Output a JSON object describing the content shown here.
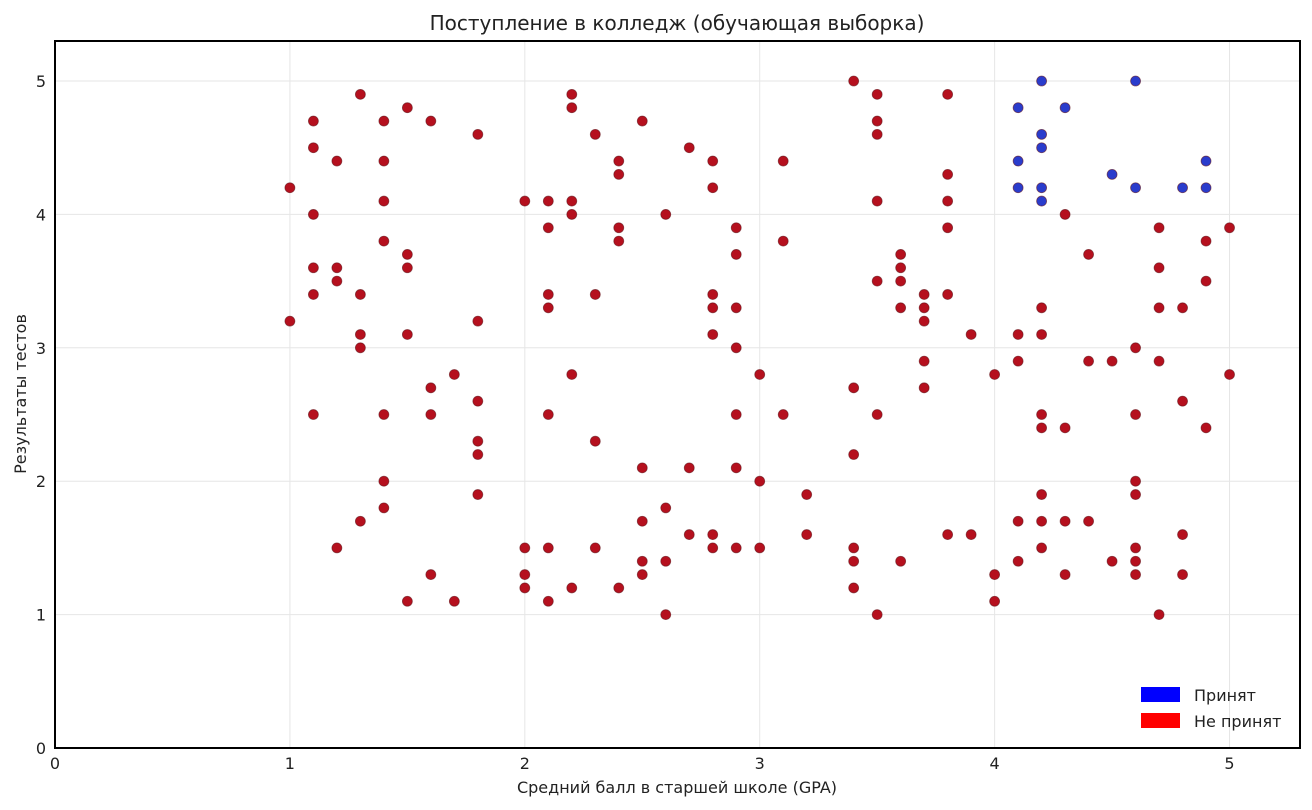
{
  "chart_data": {
    "type": "scatter",
    "title": "Поступление в колледж (обучающая выборка)",
    "xlabel": "Средний балл в старшей школе (GPA)",
    "ylabel": "Результаты тестов",
    "xlim": [
      0,
      5.3
    ],
    "ylim": [
      0,
      5.3
    ],
    "xticks": [
      0,
      1,
      2,
      3,
      4,
      5
    ],
    "yticks": [
      0,
      1,
      2,
      3,
      4,
      5
    ],
    "grid": true,
    "legend_position": "bottom-right",
    "series": [
      {
        "name": "Принят",
        "color": "#2a3ccc",
        "legend_color": "#0000ff",
        "points": [
          [
            4.2,
            5.0
          ],
          [
            4.6,
            5.0
          ],
          [
            4.1,
            4.8
          ],
          [
            4.3,
            4.8
          ],
          [
            4.2,
            4.6
          ],
          [
            4.2,
            4.5
          ],
          [
            4.1,
            4.4
          ],
          [
            4.9,
            4.4
          ],
          [
            4.5,
            4.3
          ],
          [
            4.1,
            4.2
          ],
          [
            4.2,
            4.2
          ],
          [
            4.6,
            4.2
          ],
          [
            4.8,
            4.2
          ],
          [
            4.9,
            4.2
          ],
          [
            4.2,
            4.1
          ]
        ]
      },
      {
        "name": "Не принят",
        "color": "#b5101e",
        "legend_color": "#ff0000",
        "points": [
          [
            1.0,
            4.2
          ],
          [
            1.0,
            3.2
          ],
          [
            1.1,
            4.7
          ],
          [
            1.1,
            4.5
          ],
          [
            1.1,
            4.0
          ],
          [
            1.1,
            3.6
          ],
          [
            1.1,
            3.4
          ],
          [
            1.1,
            2.5
          ],
          [
            1.2,
            4.4
          ],
          [
            1.2,
            3.6
          ],
          [
            1.2,
            3.5
          ],
          [
            1.2,
            1.5
          ],
          [
            1.3,
            4.9
          ],
          [
            1.3,
            3.4
          ],
          [
            1.3,
            3.1
          ],
          [
            1.3,
            3.0
          ],
          [
            1.3,
            1.7
          ],
          [
            1.4,
            4.7
          ],
          [
            1.4,
            4.4
          ],
          [
            1.4,
            4.1
          ],
          [
            1.4,
            3.8
          ],
          [
            1.4,
            2.5
          ],
          [
            1.4,
            2.0
          ],
          [
            1.4,
            1.8
          ],
          [
            1.5,
            4.8
          ],
          [
            1.5,
            3.7
          ],
          [
            1.5,
            3.6
          ],
          [
            1.5,
            3.1
          ],
          [
            1.5,
            1.1
          ],
          [
            1.6,
            4.7
          ],
          [
            1.6,
            2.7
          ],
          [
            1.6,
            2.5
          ],
          [
            1.6,
            1.3
          ],
          [
            1.7,
            2.8
          ],
          [
            1.7,
            1.1
          ],
          [
            1.8,
            4.6
          ],
          [
            1.8,
            3.2
          ],
          [
            1.8,
            2.6
          ],
          [
            1.8,
            2.3
          ],
          [
            1.8,
            2.2
          ],
          [
            1.8,
            1.9
          ],
          [
            2.0,
            4.1
          ],
          [
            2.0,
            1.5
          ],
          [
            2.0,
            1.3
          ],
          [
            2.0,
            1.2
          ],
          [
            2.1,
            4.1
          ],
          [
            2.1,
            3.9
          ],
          [
            2.1,
            3.4
          ],
          [
            2.1,
            3.3
          ],
          [
            2.1,
            2.5
          ],
          [
            2.1,
            1.5
          ],
          [
            2.1,
            1.1
          ],
          [
            2.2,
            4.9
          ],
          [
            2.2,
            4.8
          ],
          [
            2.2,
            4.1
          ],
          [
            2.2,
            4.0
          ],
          [
            2.2,
            2.8
          ],
          [
            2.2,
            1.2
          ],
          [
            2.3,
            4.6
          ],
          [
            2.3,
            3.4
          ],
          [
            2.3,
            2.3
          ],
          [
            2.3,
            1.5
          ],
          [
            2.4,
            4.4
          ],
          [
            2.4,
            4.3
          ],
          [
            2.4,
            3.9
          ],
          [
            2.4,
            3.8
          ],
          [
            2.4,
            1.2
          ],
          [
            2.5,
            4.7
          ],
          [
            2.5,
            2.1
          ],
          [
            2.5,
            1.7
          ],
          [
            2.5,
            1.4
          ],
          [
            2.5,
            1.3
          ],
          [
            2.6,
            4.0
          ],
          [
            2.6,
            1.8
          ],
          [
            2.6,
            1.4
          ],
          [
            2.6,
            1.0
          ],
          [
            2.7,
            4.5
          ],
          [
            2.7,
            2.1
          ],
          [
            2.7,
            1.6
          ],
          [
            2.8,
            4.4
          ],
          [
            2.8,
            4.2
          ],
          [
            2.8,
            3.4
          ],
          [
            2.8,
            3.3
          ],
          [
            2.8,
            3.1
          ],
          [
            2.8,
            1.6
          ],
          [
            2.8,
            1.5
          ],
          [
            2.9,
            3.9
          ],
          [
            2.9,
            3.7
          ],
          [
            2.9,
            3.3
          ],
          [
            2.9,
            3.0
          ],
          [
            2.9,
            2.5
          ],
          [
            2.9,
            2.1
          ],
          [
            2.9,
            1.5
          ],
          [
            3.0,
            2.8
          ],
          [
            3.0,
            2.0
          ],
          [
            3.0,
            1.5
          ],
          [
            3.1,
            4.4
          ],
          [
            3.1,
            3.8
          ],
          [
            3.1,
            2.5
          ],
          [
            3.2,
            1.9
          ],
          [
            3.2,
            1.6
          ],
          [
            3.4,
            5.0
          ],
          [
            3.4,
            2.7
          ],
          [
            3.4,
            2.2
          ],
          [
            3.4,
            1.5
          ],
          [
            3.4,
            1.4
          ],
          [
            3.4,
            1.2
          ],
          [
            3.5,
            4.9
          ],
          [
            3.5,
            4.7
          ],
          [
            3.5,
            4.6
          ],
          [
            3.5,
            4.1
          ],
          [
            3.5,
            3.5
          ],
          [
            3.5,
            2.5
          ],
          [
            3.5,
            1.0
          ],
          [
            3.6,
            3.7
          ],
          [
            3.6,
            3.6
          ],
          [
            3.6,
            3.5
          ],
          [
            3.6,
            3.3
          ],
          [
            3.6,
            1.4
          ],
          [
            3.7,
            3.4
          ],
          [
            3.7,
            3.3
          ],
          [
            3.7,
            3.2
          ],
          [
            3.7,
            2.9
          ],
          [
            3.7,
            2.7
          ],
          [
            3.8,
            4.9
          ],
          [
            3.8,
            4.3
          ],
          [
            3.8,
            4.1
          ],
          [
            3.8,
            3.9
          ],
          [
            3.8,
            3.4
          ],
          [
            3.8,
            1.6
          ],
          [
            3.9,
            3.1
          ],
          [
            3.9,
            1.6
          ],
          [
            4.0,
            2.8
          ],
          [
            4.0,
            1.3
          ],
          [
            4.0,
            1.1
          ],
          [
            4.1,
            3.1
          ],
          [
            4.1,
            2.9
          ],
          [
            4.1,
            1.7
          ],
          [
            4.1,
            1.4
          ],
          [
            4.2,
            3.3
          ],
          [
            4.2,
            3.1
          ],
          [
            4.2,
            2.5
          ],
          [
            4.2,
            2.4
          ],
          [
            4.2,
            1.9
          ],
          [
            4.2,
            1.7
          ],
          [
            4.2,
            1.5
          ],
          [
            4.3,
            4.0
          ],
          [
            4.3,
            2.4
          ],
          [
            4.3,
            1.7
          ],
          [
            4.3,
            1.3
          ],
          [
            4.4,
            3.7
          ],
          [
            4.4,
            2.9
          ],
          [
            4.4,
            1.7
          ],
          [
            4.5,
            2.9
          ],
          [
            4.5,
            1.4
          ],
          [
            4.6,
            3.0
          ],
          [
            4.6,
            2.5
          ],
          [
            4.6,
            2.0
          ],
          [
            4.6,
            1.9
          ],
          [
            4.6,
            1.5
          ],
          [
            4.6,
            1.4
          ],
          [
            4.6,
            1.3
          ],
          [
            4.7,
            3.9
          ],
          [
            4.7,
            3.6
          ],
          [
            4.7,
            3.3
          ],
          [
            4.7,
            2.9
          ],
          [
            4.7,
            1.0
          ],
          [
            4.8,
            3.3
          ],
          [
            4.8,
            2.6
          ],
          [
            4.8,
            1.6
          ],
          [
            4.8,
            1.3
          ],
          [
            4.9,
            3.8
          ],
          [
            4.9,
            3.5
          ],
          [
            4.9,
            2.4
          ],
          [
            5.0,
            3.9
          ],
          [
            5.0,
            2.8
          ]
        ]
      }
    ]
  }
}
